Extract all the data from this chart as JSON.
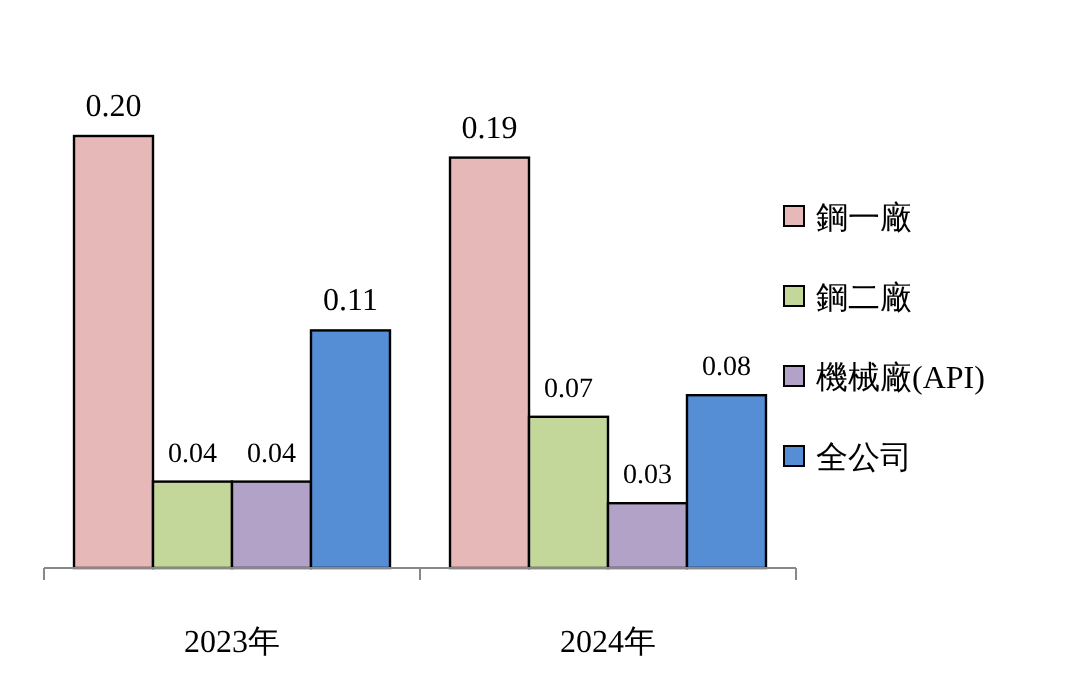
{
  "chart_data": {
    "type": "bar",
    "categories": [
      "2023年",
      "2024年"
    ],
    "series": [
      {
        "name": "鋼一廠",
        "color": "#e6b8b7",
        "values": [
          0.2,
          0.19
        ],
        "value_labels": [
          "0.20",
          "0.19"
        ]
      },
      {
        "name": "鋼二廠",
        "color": "#c4d79b",
        "values": [
          0.04,
          0.07
        ],
        "value_labels": [
          "0.04",
          "0.07"
        ]
      },
      {
        "name": "機械廠(API)",
        "color": "#b3a2c7",
        "values": [
          0.04,
          0.03
        ],
        "value_labels": [
          "0.04",
          "0.03"
        ]
      },
      {
        "name": "全公司",
        "color": "#558ed5",
        "values": [
          0.11,
          0.08
        ],
        "value_labels": [
          "0.11",
          "0.08"
        ]
      }
    ],
    "legend": "right"
  }
}
